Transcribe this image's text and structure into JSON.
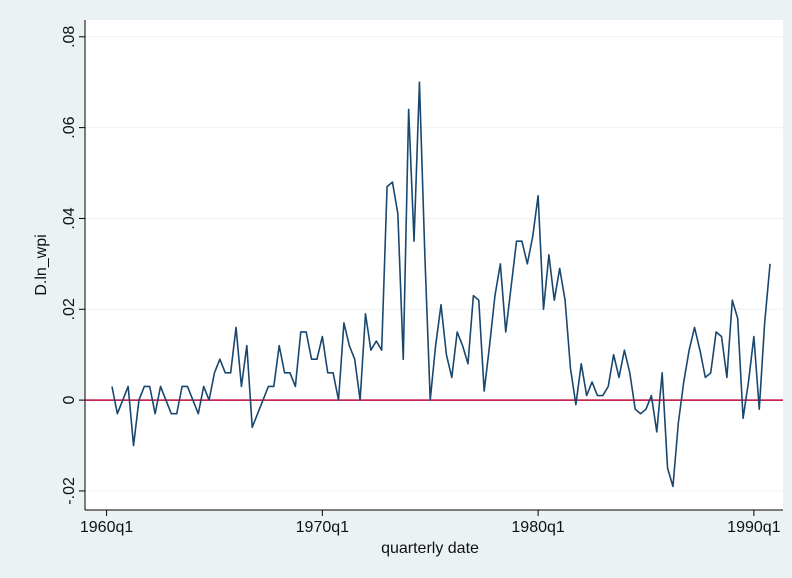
{
  "chart_data": {
    "type": "line",
    "x_label": "quarterly date",
    "y_label": "D.ln_wpi",
    "x": [
      1,
      2,
      3,
      4,
      5,
      6,
      7,
      8,
      9,
      10,
      11,
      12,
      13,
      14,
      15,
      16,
      17,
      18,
      19,
      20,
      21,
      22,
      23,
      24,
      25,
      26,
      27,
      28,
      29,
      30,
      31,
      32,
      33,
      34,
      35,
      36,
      37,
      38,
      39,
      40,
      41,
      42,
      43,
      44,
      45,
      46,
      47,
      48,
      49,
      50,
      51,
      52,
      53,
      54,
      55,
      56,
      57,
      58,
      59,
      60,
      61,
      62,
      63,
      64,
      65,
      66,
      67,
      68,
      69,
      70,
      71,
      72,
      73,
      74,
      75,
      76,
      77,
      78,
      79,
      80,
      81,
      82,
      83,
      84,
      85,
      86,
      87,
      88,
      89,
      90,
      91,
      92,
      93,
      94,
      95,
      96,
      97,
      98,
      99,
      100,
      101,
      102,
      103,
      104,
      105,
      106,
      107,
      108,
      109,
      110,
      111,
      112,
      113,
      114,
      115,
      116,
      117,
      118,
      119,
      120,
      121,
      122,
      123
    ],
    "series": [
      {
        "name": "D.ln_wpi",
        "color": "#1a476f",
        "values": [
          0.003,
          -0.003,
          0,
          0.003,
          -0.01,
          0,
          0.003,
          0.003,
          -0.003,
          0.003,
          0,
          -0.003,
          -0.003,
          0.003,
          0.003,
          0,
          -0.003,
          0.003,
          0,
          0.006,
          0.009,
          0.006,
          0.006,
          0.016,
          0.003,
          0.012,
          -0.006,
          -0.003,
          0,
          0.003,
          0.003,
          0.012,
          0.006,
          0.006,
          0.003,
          0.015,
          0.015,
          0.009,
          0.009,
          0.014,
          0.006,
          0.006,
          0,
          0.017,
          0.012,
          0.009,
          0,
          0.019,
          0.011,
          0.013,
          0.011,
          0.047,
          0.048,
          0.041,
          0.009,
          0.064,
          0.035,
          0.07,
          0.032,
          0,
          0.012,
          0.021,
          0.01,
          0.005,
          0.015,
          0.012,
          0.008,
          0.023,
          0.022,
          0.002,
          0.012,
          0.023,
          0.03,
          0.015,
          0.025,
          0.035,
          0.035,
          0.03,
          0.036,
          0.045,
          0.02,
          0.032,
          0.022,
          0.029,
          0.022,
          0.007,
          -0.001,
          0.008,
          0.001,
          0.004,
          0.001,
          0.001,
          0.003,
          0.01,
          0.005,
          0.011,
          0.006,
          -0.002,
          -0.003,
          -0.002,
          0.001,
          -0.007,
          0.006,
          -0.015,
          -0.019,
          -0.005,
          0.004,
          0.011,
          0.016,
          0.011,
          0.005,
          0.006,
          0.015,
          0.014,
          0.005,
          0.022,
          0.018,
          -0.004,
          0.004,
          0.014,
          -0.002,
          0.017,
          0.03
        ]
      }
    ],
    "xlim": [
      -4,
      125.4
    ],
    "ylim": [
      -0.0242,
      0.0837
    ],
    "xticks": [
      {
        "value": 0,
        "label": "1960q1"
      },
      {
        "value": 40,
        "label": "1970q1"
      },
      {
        "value": 80,
        "label": "1980q1"
      },
      {
        "value": 120,
        "label": "1990q1"
      }
    ],
    "yticks": [
      {
        "value": -0.02,
        "label": "-.02"
      },
      0,
      {
        "value": 0.02,
        "label": ".02"
      },
      {
        "value": 0.04,
        "label": ".04"
      },
      {
        "value": 0.06,
        "label": ".06"
      },
      {
        "value": 0.08,
        "label": ".08"
      }
    ],
    "grid": true,
    "reference_line": {
      "value": 0,
      "color": "#c10534"
    }
  }
}
